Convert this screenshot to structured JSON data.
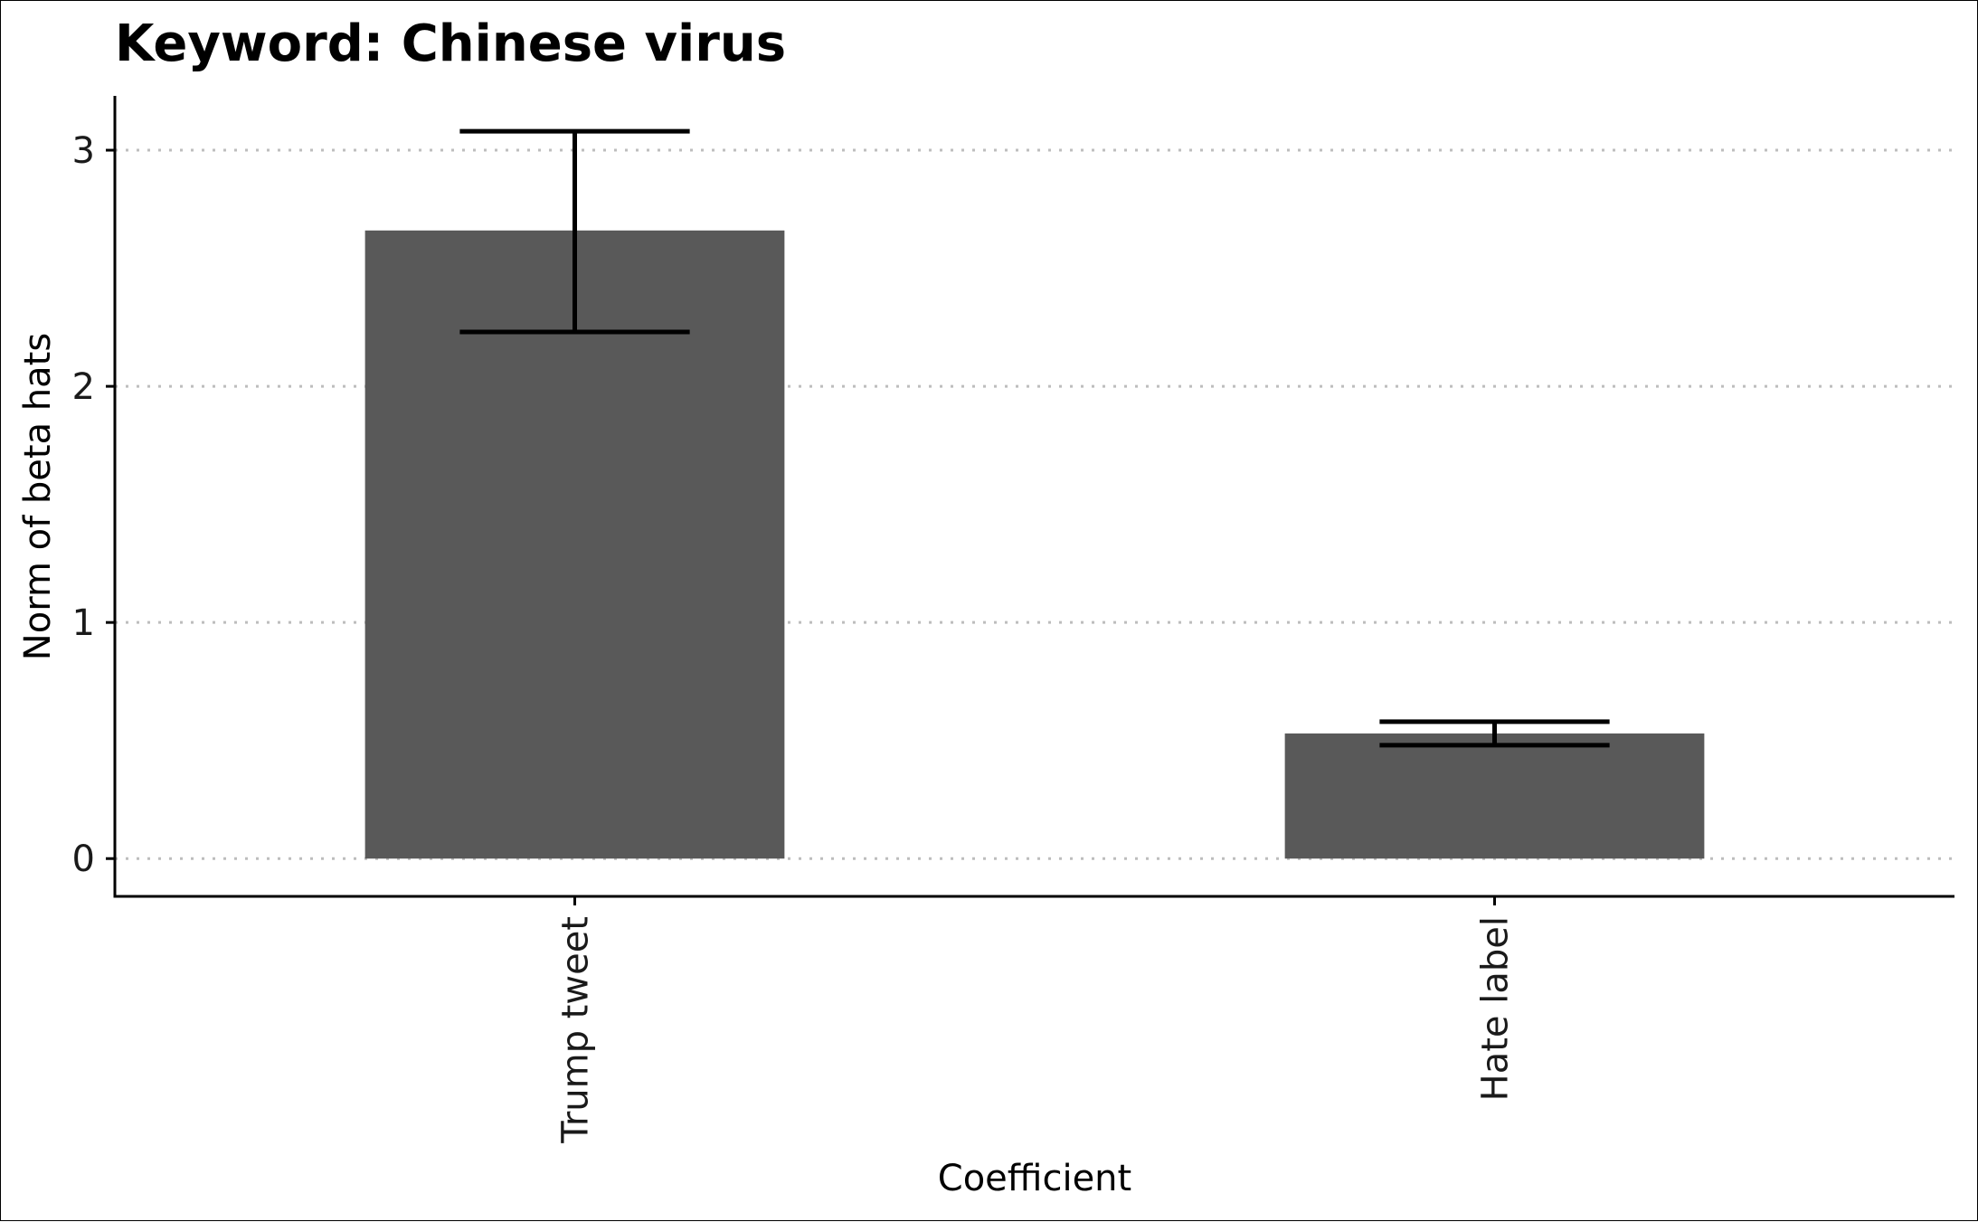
{
  "chart_data": {
    "type": "bar",
    "title": "Keyword: Chinese virus",
    "xlabel": "Coefficient",
    "ylabel": "Norm of beta hats",
    "categories": [
      "Trump tweet",
      "Hate label"
    ],
    "values": [
      2.66,
      0.53
    ],
    "error_bars": [
      {
        "lower": 2.23,
        "upper": 3.08
      },
      {
        "lower": 0.48,
        "upper": 0.58
      }
    ],
    "ylim": [
      -0.16,
      3.23
    ],
    "yticks": [
      0,
      1,
      2,
      3
    ],
    "ytick_labels": [
      "0",
      "1",
      "2",
      "3"
    ],
    "grid": "horizontal dotted",
    "legend": "none",
    "colors": {
      "bar": "#595959",
      "errorbar": "#000000",
      "grid": "#bdbdbd",
      "axis": "#000000"
    }
  }
}
